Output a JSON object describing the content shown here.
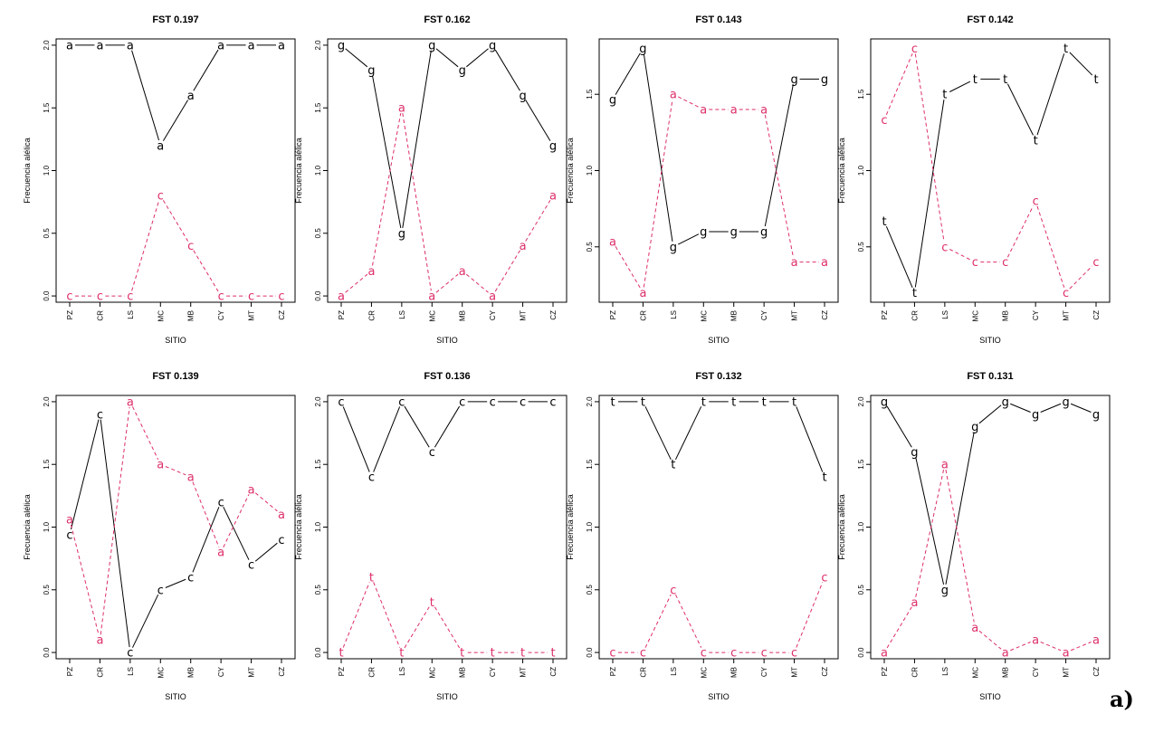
{
  "panel_label": "a)",
  "colors": {
    "black": "#000000",
    "red": "#dd2e6a"
  },
  "chart_data": [
    {
      "type": "line",
      "title": "FST 0.197",
      "xlabel": "SITIO",
      "ylabel": "Frecuencia alélica",
      "categories": [
        "PZ",
        "CR",
        "LS",
        "MC",
        "MB",
        "CY",
        "MT",
        "CZ"
      ],
      "ylim": [
        -0.05,
        2.05
      ],
      "yticks": [
        "0.0",
        "0.5",
        "1.0",
        "1.5",
        "2.0"
      ],
      "series": [
        {
          "marker": "a",
          "color": "#000000",
          "dashed": false,
          "values": [
            2.0,
            2.0,
            2.0,
            1.2,
            1.6,
            2.0,
            2.0,
            2.0
          ]
        },
        {
          "marker": "c",
          "color": "#dd2e6a",
          "dashed": true,
          "values": [
            0.0,
            0.0,
            0.0,
            0.8,
            0.4,
            0.0,
            0.0,
            0.0
          ]
        }
      ]
    },
    {
      "type": "line",
      "title": "FST 0.162",
      "xlabel": "SITIO",
      "ylabel": "Frecuencia alélica",
      "categories": [
        "PZ",
        "CR",
        "LS",
        "MC",
        "MB",
        "CY",
        "MT",
        "CZ"
      ],
      "ylim": [
        -0.05,
        2.05
      ],
      "yticks": [
        "0.0",
        "0.5",
        "1.0",
        "1.5",
        "2.0"
      ],
      "series": [
        {
          "marker": "g",
          "color": "#000000",
          "dashed": false,
          "values": [
            2.0,
            1.8,
            0.5,
            2.0,
            1.8,
            2.0,
            1.6,
            1.2
          ]
        },
        {
          "marker": "a",
          "color": "#dd2e6a",
          "dashed": true,
          "values": [
            0.0,
            0.2,
            1.5,
            0.0,
            0.2,
            0.0,
            0.4,
            0.8
          ]
        }
      ]
    },
    {
      "type": "line",
      "title": "FST 0.143",
      "xlabel": "SITIO",
      "ylabel": "Frecuencia alélica",
      "categories": [
        "PZ",
        "CR",
        "LS",
        "MC",
        "MB",
        "CY",
        "MT",
        "CZ"
      ],
      "ylim": [
        0.137,
        1.863
      ],
      "yticks": [
        "0.5",
        "1.0",
        "1.5"
      ],
      "series": [
        {
          "marker": "g",
          "color": "#000000",
          "dashed": false,
          "values": [
            1.467,
            1.8,
            0.5,
            0.6,
            0.6,
            0.6,
            1.6,
            1.6
          ]
        },
        {
          "marker": "a",
          "color": "#dd2e6a",
          "dashed": true,
          "values": [
            0.533,
            0.2,
            1.5,
            1.4,
            1.4,
            1.4,
            0.4,
            0.4
          ]
        }
      ]
    },
    {
      "type": "line",
      "title": "FST 0.142",
      "xlabel": "SITIO",
      "ylabel": "Frecuencia alélica",
      "categories": [
        "PZ",
        "CR",
        "LS",
        "MC",
        "MB",
        "CY",
        "MT",
        "CZ"
      ],
      "ylim": [
        0.137,
        1.863
      ],
      "yticks": [
        "0.5",
        "1.0",
        "1.5"
      ],
      "series": [
        {
          "marker": "t",
          "color": "#000000",
          "dashed": false,
          "values": [
            0.667,
            0.2,
            1.5,
            1.6,
            1.6,
            1.2,
            1.8,
            1.6
          ]
        },
        {
          "marker": "c",
          "color": "#dd2e6a",
          "dashed": true,
          "values": [
            1.333,
            1.8,
            0.5,
            0.4,
            0.4,
            0.8,
            0.2,
            0.4
          ]
        }
      ]
    },
    {
      "type": "line",
      "title": "FST 0.139",
      "xlabel": "SITIO",
      "ylabel": "Frecuencia alélica",
      "categories": [
        "PZ",
        "CR",
        "LS",
        "MC",
        "MB",
        "CY",
        "MT",
        "CZ"
      ],
      "ylim": [
        -0.05,
        2.05
      ],
      "yticks": [
        "0.0",
        "0.5",
        "1.0",
        "1.5",
        "2.0"
      ],
      "series": [
        {
          "marker": "c",
          "color": "#000000",
          "dashed": false,
          "values": [
            0.94,
            1.9,
            0.0,
            0.5,
            0.6,
            1.2,
            0.7,
            0.9
          ]
        },
        {
          "marker": "a",
          "color": "#dd2e6a",
          "dashed": true,
          "values": [
            1.06,
            0.1,
            2.0,
            1.5,
            1.4,
            0.8,
            1.3,
            1.1
          ]
        }
      ]
    },
    {
      "type": "line",
      "title": "FST 0.136",
      "xlabel": "SITIO",
      "ylabel": "Frecuencia alélica",
      "categories": [
        "PZ",
        "CR",
        "LS",
        "MC",
        "MB",
        "CY",
        "MT",
        "CZ"
      ],
      "ylim": [
        -0.05,
        2.05
      ],
      "yticks": [
        "0.0",
        "0.5",
        "1.0",
        "1.5",
        "2.0"
      ],
      "series": [
        {
          "marker": "c",
          "color": "#000000",
          "dashed": false,
          "values": [
            2.0,
            1.4,
            2.0,
            1.6,
            2.0,
            2.0,
            2.0,
            2.0
          ]
        },
        {
          "marker": "t",
          "color": "#dd2e6a",
          "dashed": true,
          "values": [
            0.0,
            0.6,
            0.0,
            0.4,
            0.0,
            0.0,
            0.0,
            0.0
          ]
        }
      ]
    },
    {
      "type": "line",
      "title": "FST 0.132",
      "xlabel": "SITIO",
      "ylabel": "Frecuencia alélica",
      "categories": [
        "PZ",
        "CR",
        "LS",
        "MC",
        "MB",
        "CY",
        "MT",
        "CZ"
      ],
      "ylim": [
        -0.05,
        2.05
      ],
      "yticks": [
        "0.0",
        "0.5",
        "1.0",
        "1.5",
        "2.0"
      ],
      "series": [
        {
          "marker": "t",
          "color": "#000000",
          "dashed": false,
          "values": [
            2.0,
            2.0,
            1.5,
            2.0,
            2.0,
            2.0,
            2.0,
            1.4
          ]
        },
        {
          "marker": "c",
          "color": "#dd2e6a",
          "dashed": true,
          "values": [
            0.0,
            0.0,
            0.5,
            0.0,
            0.0,
            0.0,
            0.0,
            0.6
          ]
        }
      ]
    },
    {
      "type": "line",
      "title": "FST 0.131",
      "xlabel": "SITIO",
      "ylabel": "Frecuencia alélica",
      "categories": [
        "PZ",
        "CR",
        "LS",
        "MC",
        "MB",
        "CY",
        "MT",
        "CZ"
      ],
      "ylim": [
        -0.05,
        2.05
      ],
      "yticks": [
        "0.0",
        "0.5",
        "1.0",
        "1.5",
        "2.0"
      ],
      "series": [
        {
          "marker": "g",
          "color": "#000000",
          "dashed": false,
          "values": [
            2.0,
            1.6,
            0.5,
            1.8,
            2.0,
            1.9,
            2.0,
            1.9
          ]
        },
        {
          "marker": "a",
          "color": "#dd2e6a",
          "dashed": true,
          "values": [
            0.0,
            0.4,
            1.5,
            0.2,
            0.0,
            0.1,
            0.0,
            0.1
          ]
        }
      ]
    }
  ]
}
